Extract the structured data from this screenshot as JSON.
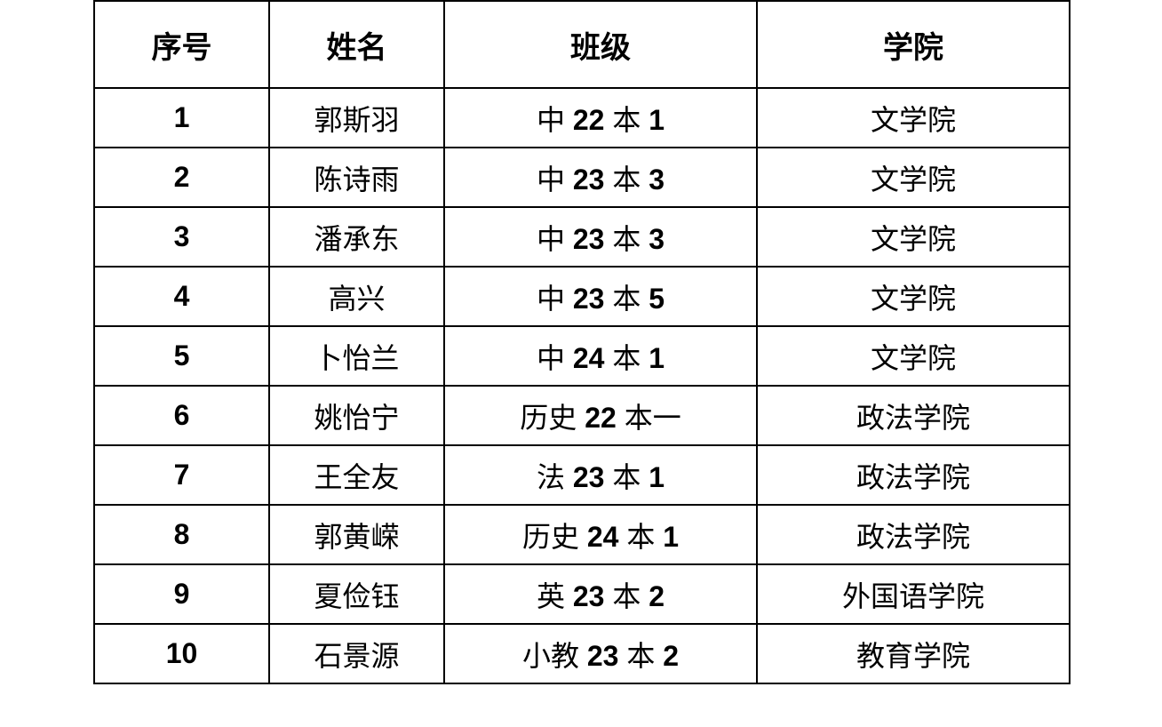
{
  "table": {
    "headers": [
      "序号",
      "姓名",
      "班级",
      "学院"
    ],
    "rows": [
      {
        "index": "1",
        "name": "郭斯羽",
        "class": "中 22 本 1",
        "college": "文学院"
      },
      {
        "index": "2",
        "name": "陈诗雨",
        "class": "中 23 本 3",
        "college": "文学院"
      },
      {
        "index": "3",
        "name": "潘承东",
        "class": "中 23 本 3",
        "college": "文学院"
      },
      {
        "index": "4",
        "name": "高兴",
        "class": "中 23 本 5",
        "college": "文学院"
      },
      {
        "index": "5",
        "name": "卜怡兰",
        "class": "中 24 本 1",
        "college": "文学院"
      },
      {
        "index": "6",
        "name": "姚怡宁",
        "class": "历史 22 本一",
        "college": "政法学院"
      },
      {
        "index": "7",
        "name": "王全友",
        "class": "法 23 本 1",
        "college": "政法学院"
      },
      {
        "index": "8",
        "name": "郭黄嵘",
        "class": "历史 24 本 1",
        "college": "政法学院"
      },
      {
        "index": "9",
        "name": "夏俭钰",
        "class": "英 23 本 2",
        "college": "外国语学院"
      },
      {
        "index": "10",
        "name": "石景源",
        "class": "小教 23 本 2",
        "college": "教育学院"
      }
    ]
  }
}
